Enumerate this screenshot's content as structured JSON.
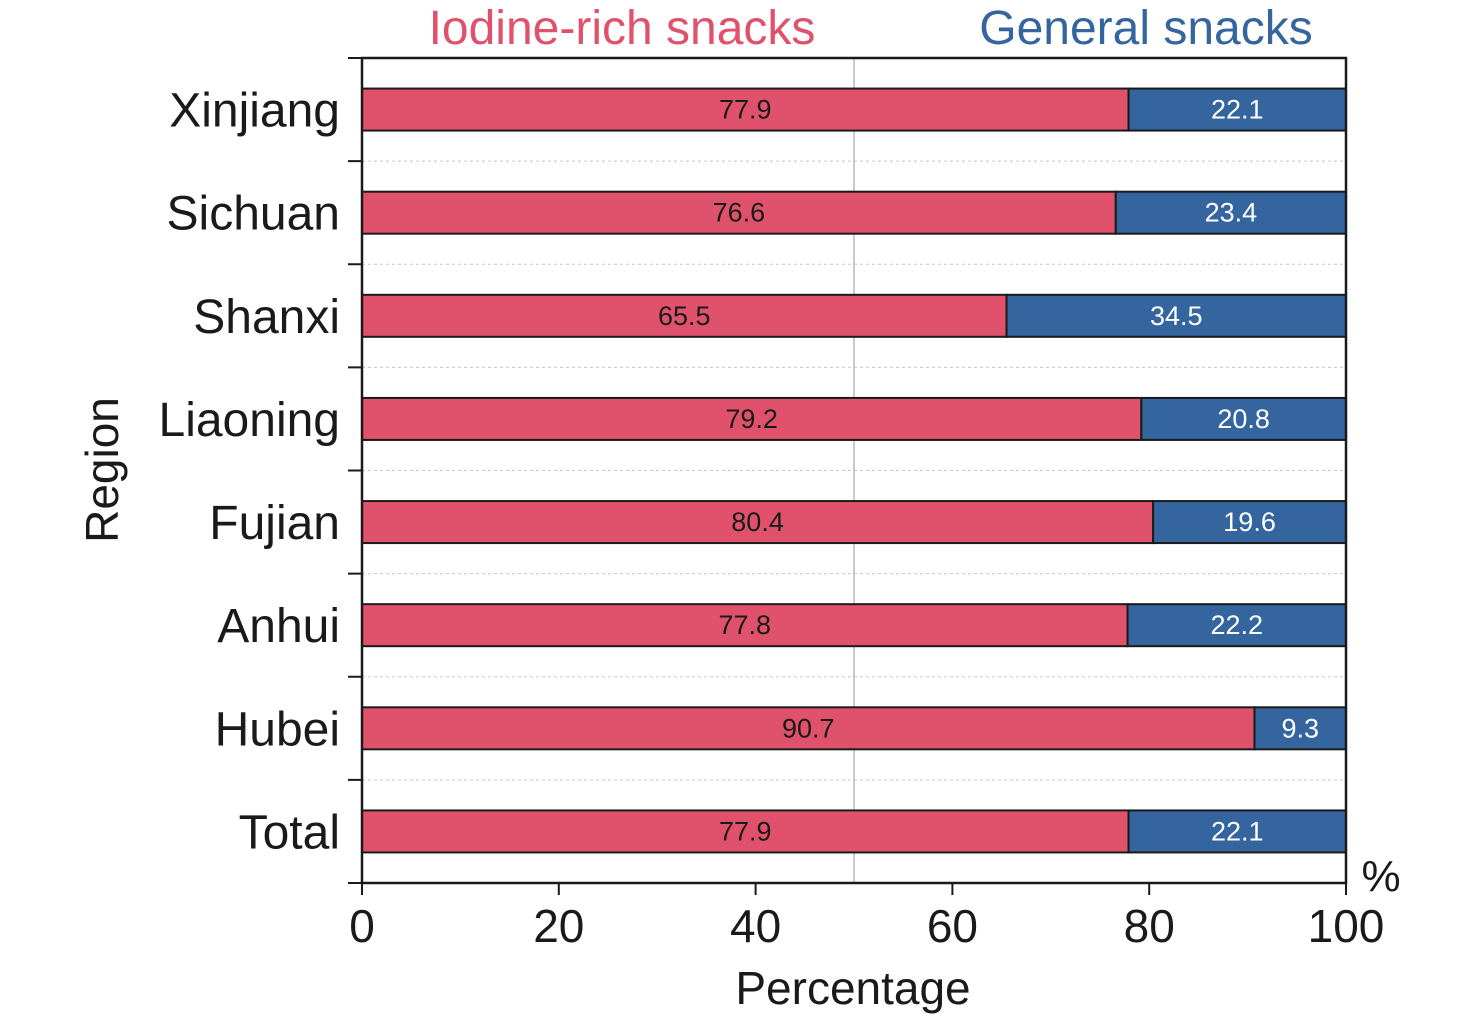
{
  "chart_data": {
    "type": "bar",
    "orientation": "horizontal",
    "stacked": true,
    "categories": [
      "Xinjiang",
      "Sichuan",
      "Shanxi",
      "Liaoning",
      "Fujian",
      "Anhui",
      "Hubei",
      "Total"
    ],
    "series": [
      {
        "name": "Iodine-rich snacks",
        "color": "#E0526B",
        "label_color": "#1a1a1a",
        "values": [
          77.9,
          76.6,
          65.5,
          79.2,
          80.4,
          77.8,
          90.7,
          77.9
        ]
      },
      {
        "name": "General snacks",
        "color": "#34659F",
        "label_color": "#ffffff",
        "values": [
          22.1,
          23.4,
          34.5,
          20.8,
          19.6,
          22.2,
          9.3,
          22.1
        ]
      }
    ],
    "xlabel": "Percentage",
    "ylabel": "Region",
    "x_unit": "%",
    "xlim": [
      0,
      100
    ],
    "xticks": [
      0,
      20,
      40,
      60,
      80,
      100
    ],
    "legend_position": "top",
    "grid": "dashed horizontal separators between categories; vertical reference line at 50"
  }
}
